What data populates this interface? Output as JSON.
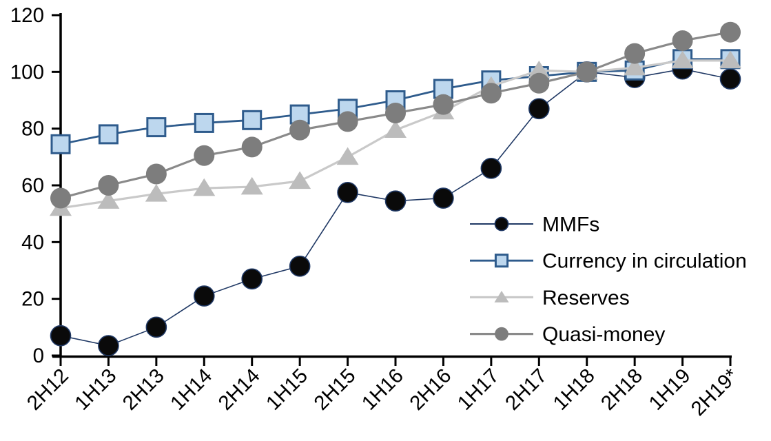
{
  "chart_data": {
    "type": "line",
    "title": "",
    "xlabel": "",
    "ylabel": "",
    "ylim": [
      0,
      120
    ],
    "y_ticks": [
      0,
      20,
      40,
      60,
      80,
      100,
      120
    ],
    "grid": false,
    "legend_position": "inside-right",
    "categories": [
      "2H12",
      "1H13",
      "2H13",
      "1H14",
      "2H14",
      "1H15",
      "2H15",
      "1H16",
      "2H16",
      "1H17",
      "2H17",
      "1H18",
      "2H18",
      "1H19",
      "2H19*"
    ],
    "series": [
      {
        "name": "MMFs",
        "marker": "circle",
        "marker_size": 29,
        "marker_fill": "#0a0a0a",
        "marker_stroke": "#1f3864",
        "marker_stroke_width": 1.6,
        "line_color": "#1f3864",
        "line_width": 1.6,
        "values": [
          7,
          3.5,
          10,
          21,
          27,
          31.5,
          57.5,
          54.5,
          55.5,
          66,
          87,
          100,
          98,
          101,
          97.5
        ]
      },
      {
        "name": "Currency in circulation",
        "marker": "square",
        "marker_size": 26,
        "marker_fill": "#bdd7ee",
        "marker_stroke": "#2e5b8c",
        "marker_stroke_width": 3,
        "line_color": "#2e5b8c",
        "line_width": 2.8,
        "values": [
          74.5,
          78,
          80.5,
          82,
          83,
          85,
          87,
          90,
          94,
          97,
          98.5,
          100,
          100.5,
          104.5,
          104.5
        ]
      },
      {
        "name": "Reserves",
        "marker": "triangle",
        "marker_size": 32,
        "marker_fill": "#bcbcbc",
        "marker_stroke": "none",
        "marker_stroke_width": 0,
        "line_color": "#c9c9c9",
        "line_width": 3.2,
        "values": [
          52,
          54.5,
          57,
          59,
          59.5,
          61.5,
          70,
          79.5,
          86,
          95,
          100.5,
          100,
          101.5,
          104,
          104
        ]
      },
      {
        "name": "Quasi-money",
        "marker": "circle",
        "marker_size": 30,
        "marker_fill": "#7d7d7d",
        "marker_stroke": "none",
        "marker_stroke_width": 0,
        "line_color": "#8a8a8a",
        "line_width": 3.2,
        "values": [
          55.5,
          60,
          64,
          70.5,
          73.5,
          79.5,
          82.5,
          85.5,
          88.5,
          92.5,
          96,
          100,
          106.5,
          111,
          114
        ]
      }
    ],
    "axis_color": "#000000",
    "text_color": "#000000",
    "background_color": "#ffffff"
  }
}
